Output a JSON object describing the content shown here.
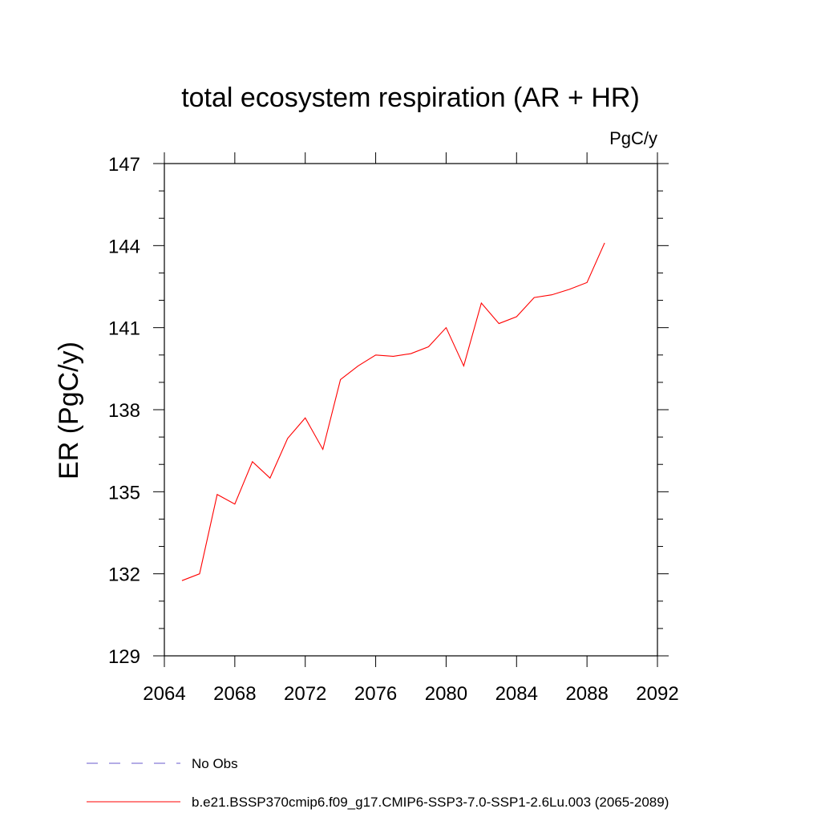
{
  "chart_data": {
    "type": "line",
    "title": "total ecosystem respiration (AR + HR)",
    "units_label": "PgC/y",
    "ylabel": "ER  (PgC/y)",
    "xlabel": "",
    "xlim": [
      2064,
      2092
    ],
    "ylim": [
      129,
      147
    ],
    "x_ticks": [
      2064,
      2068,
      2072,
      2076,
      2080,
      2084,
      2088,
      2092
    ],
    "y_ticks": [
      129,
      132,
      135,
      138,
      141,
      144,
      147
    ],
    "grid": false,
    "legend_position": "bottom",
    "series": [
      {
        "name": "b.e21.BSSP370cmip6.f09_g17.CMIP6-SSP3-7.0-SSP1-2.6Lu.003 (2065-2089)",
        "color": "#ff0000",
        "line_style": "solid",
        "x": [
          2065,
          2066,
          2067,
          2068,
          2069,
          2070,
          2071,
          2072,
          2073,
          2074,
          2075,
          2076,
          2077,
          2078,
          2079,
          2080,
          2081,
          2082,
          2083,
          2084,
          2085,
          2086,
          2087,
          2088,
          2089
        ],
        "y": [
          131.75,
          132.0,
          134.9,
          134.55,
          136.1,
          135.5,
          136.95,
          137.7,
          136.55,
          139.1,
          139.6,
          140.0,
          139.95,
          140.05,
          140.3,
          141.0,
          139.6,
          141.9,
          141.15,
          141.4,
          142.1,
          142.2,
          142.4,
          142.65,
          144.1
        ]
      }
    ],
    "legend": [
      {
        "label": "No Obs",
        "color": "#6a5acd",
        "line_style": "dashed"
      },
      {
        "label": "b.e21.BSSP370cmip6.f09_g17.CMIP6-SSP3-7.0-SSP1-2.6Lu.003 (2065-2089)",
        "color": "#ff0000",
        "line_style": "solid"
      }
    ]
  }
}
